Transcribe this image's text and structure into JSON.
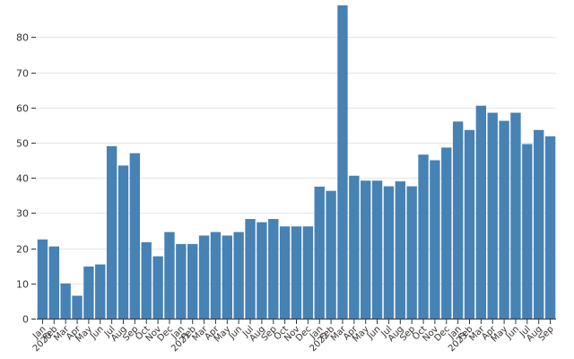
{
  "chart_data": {
    "type": "bar",
    "title": "",
    "xlabel": "",
    "ylabel": "",
    "ylim": [
      0,
      89
    ],
    "yticks": [
      0,
      10,
      20,
      30,
      40,
      50,
      60,
      70,
      80
    ],
    "grid": "horizontal",
    "bar_color": "#4682b4",
    "categories": [
      "Jan\n2020",
      "Feb",
      "Mar",
      "Apr",
      "May",
      "Jun",
      "Jul",
      "Aug",
      "Sep",
      "Oct",
      "Nov",
      "Dec",
      "Jan\n2021",
      "Feb",
      "Mar",
      "Apr",
      "May",
      "Jun",
      "Jul",
      "Aug",
      "Sep",
      "Oct",
      "Nov",
      "Dec",
      "Jan\n2022",
      "Feb",
      "Mar",
      "Apr",
      "May",
      "Jun",
      "Jul",
      "Aug",
      "Sep",
      "Oct",
      "Nov",
      "Dec",
      "Jan\n2023",
      "Feb",
      "Mar",
      "Apr",
      "May",
      "Jun",
      "Jul",
      "Aug",
      "Sep"
    ],
    "values": [
      22.5,
      20.5,
      10,
      6.5,
      14.8,
      15.4,
      49,
      43.5,
      47,
      21.7,
      17.7,
      24.6,
      21.2,
      21.2,
      23.6,
      24.6,
      23.6,
      24.6,
      28.3,
      27.4,
      28.3,
      26.2,
      26.2,
      26.2,
      37.5,
      36.3,
      89,
      40.6,
      39.2,
      39.2,
      37.6,
      39,
      37.6,
      46.6,
      45,
      48.6,
      56,
      53.6,
      60.5,
      58.5,
      56.2,
      58.5,
      49.6,
      53.6,
      51.8
    ]
  }
}
